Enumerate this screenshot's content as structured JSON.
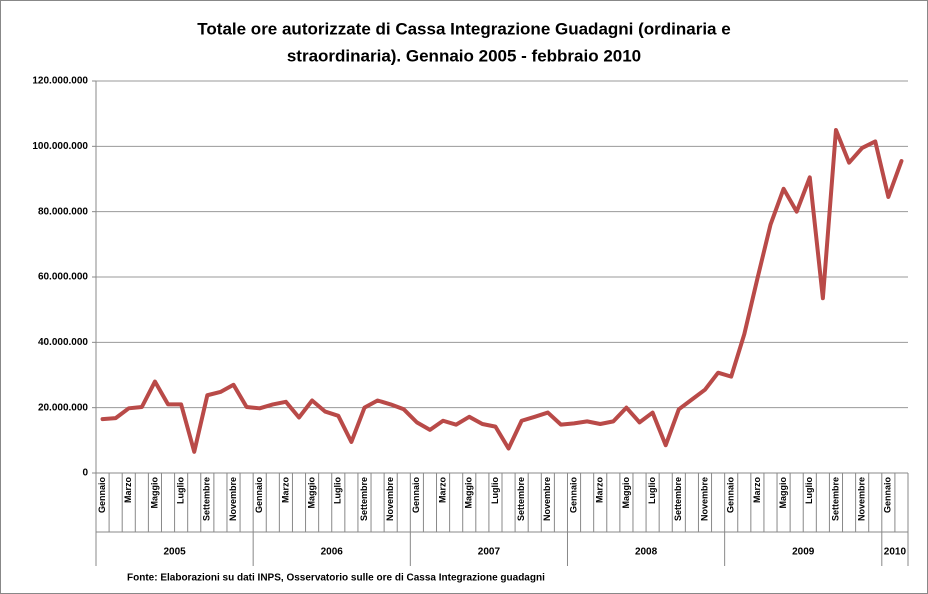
{
  "chart_data": {
    "type": "line",
    "title": [
      "Totale ore autorizzate  di Cassa Integrazione Guadagni (ordinaria e",
      "straordinaria). Gennaio 2005   - febbraio 2010"
    ],
    "categories": [
      "Gennaio",
      null,
      "Marzo",
      null,
      "Maggio",
      null,
      "Luglio",
      null,
      "Settembre",
      null,
      "Novembre",
      null,
      "Gennaio",
      null,
      "Marzo",
      null,
      "Maggio",
      null,
      "Luglio",
      null,
      "Settembre",
      null,
      "Novembre",
      null,
      "Gennaio",
      null,
      "Marzo",
      null,
      "Maggio",
      null,
      "Luglio",
      null,
      "Settembre",
      null,
      "Novembre",
      null,
      "Gennaio",
      null,
      "Marzo",
      null,
      "Maggio",
      null,
      "Luglio",
      null,
      "Settembre",
      null,
      "Novembre",
      null,
      "Gennaio",
      null,
      "Marzo",
      null,
      "Maggio",
      null,
      "Luglio",
      null,
      "Settembre",
      null,
      "Novembre",
      null,
      "Gennaio",
      null
    ],
    "years": [
      "2005",
      "2006",
      "2007",
      "2008",
      "2009",
      "2010"
    ],
    "series": [
      {
        "name": null,
        "color": "#b94a48",
        "values": [
          16500000,
          16800000,
          19800000,
          20200000,
          28000000,
          21000000,
          21000000,
          6500000,
          23800000,
          24800000,
          27000000,
          20200000,
          19800000,
          21000000,
          21800000,
          17000000,
          22200000,
          18800000,
          17500000,
          9500000,
          20000000,
          22200000,
          21000000,
          19500000,
          15500000,
          13200000,
          16000000,
          14800000,
          17200000,
          15000000,
          14200000,
          7500000,
          16000000,
          17200000,
          18500000,
          14800000,
          15200000,
          15800000,
          15000000,
          15800000,
          20000000,
          15500000,
          18500000,
          8500000,
          19500000,
          22500000,
          25500000,
          30700000,
          29500000,
          42500000,
          59500000,
          76000000,
          87000000,
          80000000,
          90500000,
          53500000,
          105000000,
          95000000,
          99500000,
          101500000,
          84500000,
          95500000
        ]
      }
    ],
    "ylim": [
      0,
      120000000
    ],
    "yticks": [
      0,
      {
        "value": 20000000,
        "label": "20.000.000"
      },
      {
        "value": 40000000,
        "label": "40.000.000"
      },
      {
        "value": 60000000,
        "label": "60.000.000"
      },
      {
        "value": 80000000,
        "label": "80.000.000"
      },
      {
        "value": 100000000,
        "label": "100.000.000"
      },
      {
        "value": 120000000,
        "label": "120.000.000"
      }
    ],
    "grid": true,
    "source": "Fonte:  Elaborazioni su dati INPS, Osservatorio sulle ore di Cassa Integrazione guadagni"
  }
}
